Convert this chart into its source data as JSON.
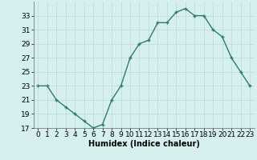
{
  "x": [
    0,
    1,
    2,
    3,
    4,
    5,
    6,
    7,
    8,
    9,
    10,
    11,
    12,
    13,
    14,
    15,
    16,
    17,
    18,
    19,
    20,
    21,
    22,
    23
  ],
  "y": [
    23,
    23,
    21,
    20,
    19,
    18,
    17,
    17.5,
    21,
    23,
    27,
    29,
    29.5,
    32,
    32,
    33.5,
    34,
    33,
    33,
    31,
    30,
    27,
    25,
    23
  ],
  "line_color": "#2e7d6e",
  "marker": "+",
  "bg_color": "#d6f0ef",
  "grid_color": "#c0dedd",
  "xlabel": "Humidex (Indice chaleur)",
  "ylim": [
    17,
    35
  ],
  "yticks": [
    17,
    19,
    21,
    23,
    25,
    27,
    29,
    31,
    33
  ],
  "xticks": [
    0,
    1,
    2,
    3,
    4,
    5,
    6,
    7,
    8,
    9,
    10,
    11,
    12,
    13,
    14,
    15,
    16,
    17,
    18,
    19,
    20,
    21,
    22,
    23
  ],
  "xlabel_fontsize": 7,
  "tick_fontsize": 6.5,
  "line_width": 1.0,
  "marker_size": 3.5
}
